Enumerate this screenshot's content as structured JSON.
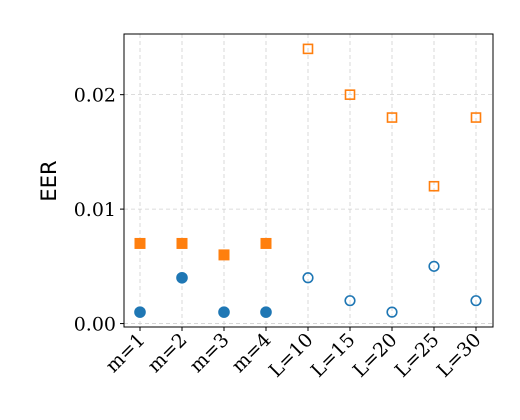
{
  "chart_data": {
    "type": "scatter",
    "categories": [
      "m=1",
      "m=2",
      "m=3",
      "m=4",
      "L=10",
      "L=15",
      "L=20",
      "L=25",
      "L=30"
    ],
    "series": [
      {
        "marker": "square",
        "color": "#ff7f0e",
        "filled": [
          true,
          true,
          true,
          true,
          false,
          false,
          false,
          false,
          false
        ],
        "values": [
          0.007,
          0.007,
          0.006,
          0.007,
          0.024,
          0.02,
          0.018,
          0.012,
          0.018
        ]
      },
      {
        "marker": "circle",
        "color": "#1f77b4",
        "filled": [
          true,
          true,
          true,
          true,
          false,
          false,
          false,
          false,
          false
        ],
        "values": [
          0.001,
          0.004,
          0.001,
          0.001,
          0.004,
          0.002,
          0.001,
          0.005,
          0.002
        ]
      }
    ],
    "ylabel": "EER",
    "xlabel": "",
    "title": "",
    "ylim": [
      -0.0003,
      0.0253
    ],
    "yticks": [
      0.0,
      0.01,
      0.02
    ],
    "ytick_labels": [
      "0.00",
      "0.01",
      "0.02"
    ],
    "grid": true,
    "xtick_rotation": -45
  }
}
